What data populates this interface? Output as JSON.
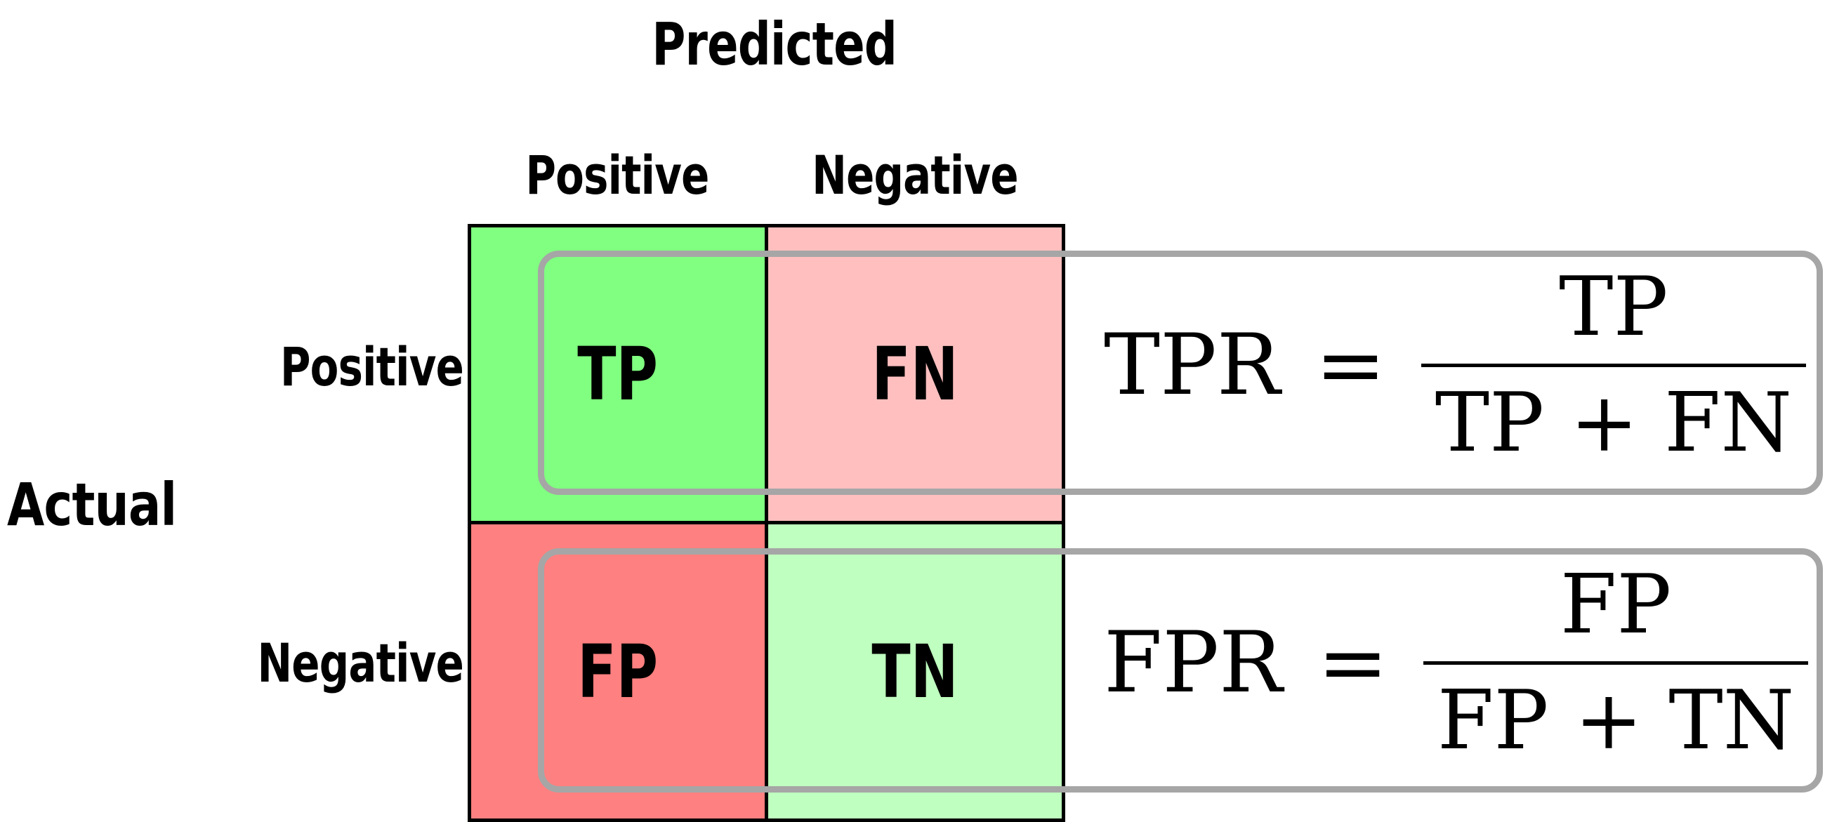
{
  "predicted_label": "Predicted",
  "actual_label": "Actual",
  "columns": [
    "Positive",
    "Negative"
  ],
  "rows": [
    "Positive",
    "Negative"
  ],
  "cells": [
    {
      "label": "TP",
      "color": "#80ff80"
    },
    {
      "label": "FN",
      "color": "#ffbfbf"
    },
    {
      "label": "FP",
      "color": "#ff8080"
    },
    {
      "label": "TN",
      "color": "#bfffbf"
    }
  ],
  "callout_color": "#a6a6a6",
  "formulas": [
    {
      "lhs": "TPR",
      "eq": "=",
      "numerator": "TP",
      "denominator": "TP + FN"
    },
    {
      "lhs": "FPR",
      "eq": "=",
      "numerator": "FP",
      "denominator": "FP + TN"
    }
  ]
}
